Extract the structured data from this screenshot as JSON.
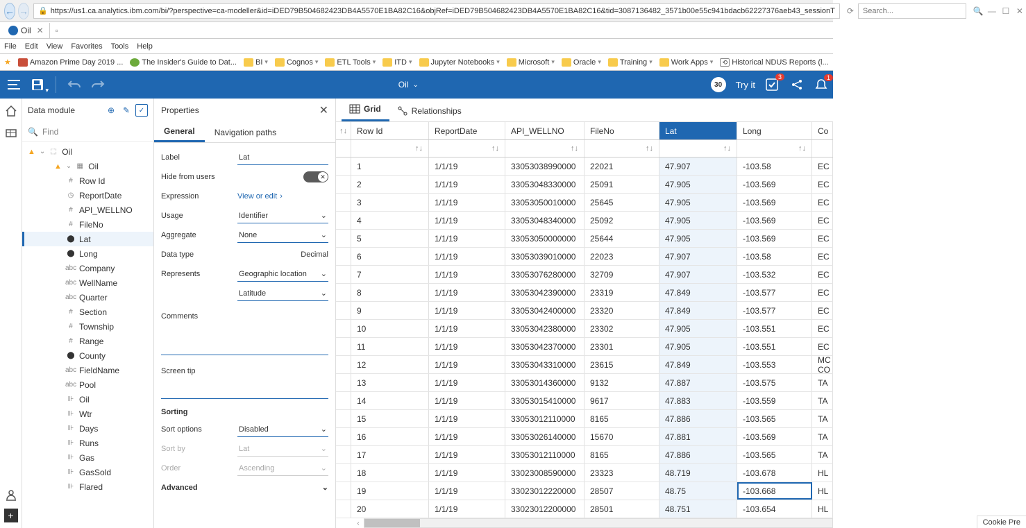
{
  "browser": {
    "url": "https://us1.ca.analytics.ibm.com/bi/?perspective=ca-modeller&id=iDED79B504682423DB4A5570E1BA82C16&objRef=iDED79B504682423DB4A5570E1BA82C16&tid=3087136482_3571b00e55c941bdacb62227376aeb43_sessionT",
    "search_placeholder": "Search...",
    "tab_title": "Oil",
    "menus": [
      "File",
      "Edit",
      "View",
      "Favorites",
      "Tools",
      "Help"
    ],
    "bookmarks": [
      {
        "label": "Amazon Prime Day 2019 ...",
        "icon": "red"
      },
      {
        "label": "The Insider's Guide to Dat...",
        "icon": "green"
      },
      {
        "label": "BI",
        "icon": "folder",
        "drop": true
      },
      {
        "label": "Cognos",
        "icon": "folder",
        "drop": true
      },
      {
        "label": "ETL Tools",
        "icon": "folder",
        "drop": true
      },
      {
        "label": "ITD",
        "icon": "folder",
        "drop": true
      },
      {
        "label": "Jupyter Notebooks",
        "icon": "folder",
        "drop": true
      },
      {
        "label": "Microsoft",
        "icon": "folder",
        "drop": true
      },
      {
        "label": "Oracle",
        "icon": "folder",
        "drop": true
      },
      {
        "label": "Training",
        "icon": "folder",
        "drop": true
      },
      {
        "label": "Work Apps",
        "icon": "folder",
        "drop": true
      },
      {
        "label": "Historical NDUS Reports (l...",
        "icon": "history"
      }
    ]
  },
  "app": {
    "title": "Oil",
    "badge_count": "30",
    "try_it_label": "Try it",
    "badge3": "3",
    "badge1": "1"
  },
  "module": {
    "title": "Data module",
    "find_placeholder": "Find",
    "tree": [
      {
        "level": 0,
        "icon": "warn",
        "type": "module",
        "label": "Oil"
      },
      {
        "level": 1,
        "icon": "warn",
        "type": "table",
        "label": "Oil",
        "chev": true
      },
      {
        "level": 2,
        "type": "hash",
        "label": "Row Id"
      },
      {
        "level": 2,
        "type": "clock",
        "label": "ReportDate"
      },
      {
        "level": 2,
        "type": "hash",
        "label": "API_WELLNO"
      },
      {
        "level": 2,
        "type": "hash",
        "label": "FileNo"
      },
      {
        "level": 2,
        "type": "marker",
        "label": "Lat",
        "selected": true
      },
      {
        "level": 2,
        "type": "marker",
        "label": "Long"
      },
      {
        "level": 2,
        "type": "abc",
        "label": "Company"
      },
      {
        "level": 2,
        "type": "abc",
        "label": "WellName"
      },
      {
        "level": 2,
        "type": "abc",
        "label": "Quarter"
      },
      {
        "level": 2,
        "type": "hash",
        "label": "Section"
      },
      {
        "level": 2,
        "type": "hash",
        "label": "Township"
      },
      {
        "level": 2,
        "type": "hash",
        "label": "Range"
      },
      {
        "level": 2,
        "type": "marker",
        "label": "County"
      },
      {
        "level": 2,
        "type": "abc",
        "label": "FieldName"
      },
      {
        "level": 2,
        "type": "abc",
        "label": "Pool"
      },
      {
        "level": 2,
        "type": "ruler",
        "label": "Oil"
      },
      {
        "level": 2,
        "type": "ruler",
        "label": "Wtr"
      },
      {
        "level": 2,
        "type": "ruler",
        "label": "Days"
      },
      {
        "level": 2,
        "type": "ruler",
        "label": "Runs"
      },
      {
        "level": 2,
        "type": "ruler",
        "label": "Gas"
      },
      {
        "level": 2,
        "type": "ruler",
        "label": "GasSold"
      },
      {
        "level": 2,
        "type": "ruler",
        "label": "Flared"
      }
    ]
  },
  "props": {
    "title": "Properties",
    "tab_general": "General",
    "tab_nav": "Navigation paths",
    "label_l": "Label",
    "label_v": "Lat",
    "hide_l": "Hide from users",
    "expr_l": "Expression",
    "expr_link": "View or edit",
    "usage_l": "Usage",
    "usage_v": "Identifier",
    "agg_l": "Aggregate",
    "agg_v": "None",
    "dtype_l": "Data type",
    "dtype_v": "Decimal",
    "repr_l": "Represents",
    "repr_v": "Geographic location",
    "latit_v": "Latitude",
    "comments_l": "Comments",
    "screentip_l": "Screen tip",
    "sorting_l": "Sorting",
    "sortopt_l": "Sort options",
    "sortopt_v": "Disabled",
    "sortby_l": "Sort by",
    "sortby_v": "Lat",
    "order_l": "Order",
    "order_v": "Ascending",
    "adv_l": "Advanced"
  },
  "grid": {
    "tab_grid": "Grid",
    "tab_rel": "Relationships",
    "columns": [
      "Row Id",
      "ReportDate",
      "API_WELLNO",
      "FileNo",
      "Lat",
      "Long",
      "Co"
    ],
    "highlight_col": 4,
    "rows": [
      [
        "1",
        "1/1/19",
        "33053038990000",
        "22021",
        "47.907",
        "-103.58",
        "EC"
      ],
      [
        "2",
        "1/1/19",
        "33053048330000",
        "25091",
        "47.905",
        "-103.569",
        "EC"
      ],
      [
        "3",
        "1/1/19",
        "33053050010000",
        "25645",
        "47.905",
        "-103.569",
        "EC"
      ],
      [
        "4",
        "1/1/19",
        "33053048340000",
        "25092",
        "47.905",
        "-103.569",
        "EC"
      ],
      [
        "5",
        "1/1/19",
        "33053050000000",
        "25644",
        "47.905",
        "-103.569",
        "EC"
      ],
      [
        "6",
        "1/1/19",
        "33053039010000",
        "22023",
        "47.907",
        "-103.58",
        "EC"
      ],
      [
        "7",
        "1/1/19",
        "33053076280000",
        "32709",
        "47.907",
        "-103.532",
        "EC"
      ],
      [
        "8",
        "1/1/19",
        "33053042390000",
        "23319",
        "47.849",
        "-103.577",
        "EC"
      ],
      [
        "9",
        "1/1/19",
        "33053042400000",
        "23320",
        "47.849",
        "-103.577",
        "EC"
      ],
      [
        "10",
        "1/1/19",
        "33053042380000",
        "23302",
        "47.905",
        "-103.551",
        "EC"
      ],
      [
        "11",
        "1/1/19",
        "33053042370000",
        "23301",
        "47.905",
        "-103.551",
        "EC"
      ],
      [
        "12",
        "1/1/19",
        "33053043310000",
        "23615",
        "47.849",
        "-103.553",
        "MC CO"
      ],
      [
        "13",
        "1/1/19",
        "33053014360000",
        "9132",
        "47.887",
        "-103.575",
        "TA"
      ],
      [
        "14",
        "1/1/19",
        "33053015410000",
        "9617",
        "47.883",
        "-103.559",
        "TA"
      ],
      [
        "15",
        "1/1/19",
        "33053012110000",
        "8165",
        "47.886",
        "-103.565",
        "TA"
      ],
      [
        "16",
        "1/1/19",
        "33053026140000",
        "15670",
        "47.881",
        "-103.569",
        "TA"
      ],
      [
        "17",
        "1/1/19",
        "33053012110000",
        "8165",
        "47.886",
        "-103.565",
        "TA"
      ],
      [
        "18",
        "1/1/19",
        "33023008590000",
        "23323",
        "48.719",
        "-103.678",
        "HL"
      ],
      [
        "19",
        "1/1/19",
        "33023012220000",
        "28507",
        "48.75",
        "-103.668",
        "HL"
      ],
      [
        "20",
        "1/1/19",
        "33023012200000",
        "28501",
        "48.751",
        "-103.654",
        "HL"
      ]
    ],
    "sel_cell": [
      18,
      5
    ],
    "cookie_label": "Cookie Pre"
  }
}
